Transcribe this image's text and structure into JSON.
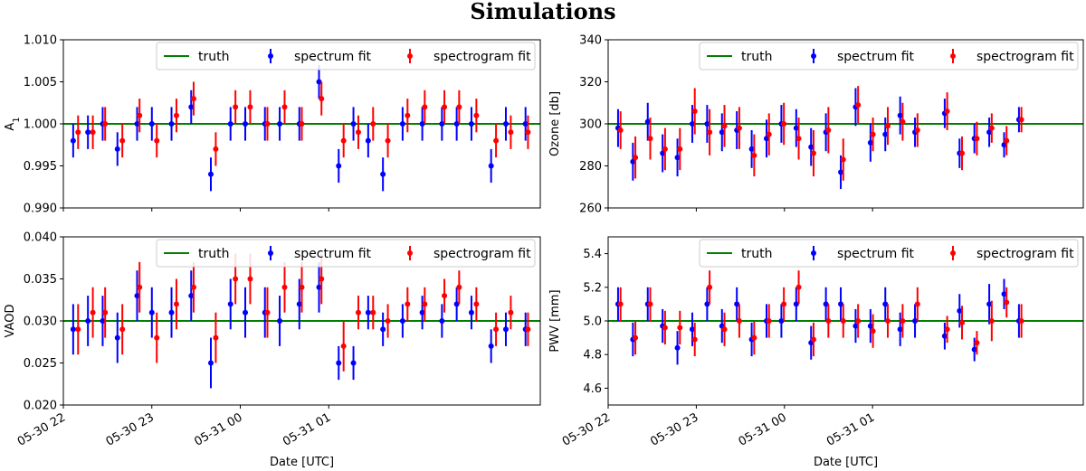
{
  "figure": {
    "title": "Simulations"
  },
  "colors": {
    "truth": "#008000",
    "spectrum": "#0000ff",
    "spectrogram": "#ff0000"
  },
  "legend": {
    "truth": "truth",
    "spectrum": "spectrum fit",
    "spectrogram": "spectrogram fit"
  },
  "chart_data": [
    {
      "id": "A1",
      "type": "scatter",
      "ylabel": "A1",
      "ylabel_base": "A",
      "ylabel_sub": "1",
      "xlabel": "",
      "ylim": [
        0.99,
        1.01
      ],
      "yticks": [
        0.99,
        0.995,
        1.0,
        1.005,
        1.01
      ],
      "ytick_labels": [
        "0.990",
        "0.995",
        "1.000",
        "1.005",
        "1.010"
      ],
      "truth": 1.0,
      "legend_position": "top-right",
      "spectrum": [
        [
          0.2,
          0.998,
          0.002
        ],
        [
          0.5,
          0.999,
          0.002
        ],
        [
          0.8,
          1.0,
          0.002
        ],
        [
          1.1,
          0.997,
          0.002
        ],
        [
          1.5,
          1.0,
          0.002
        ],
        [
          1.8,
          1.0,
          0.002
        ],
        [
          2.2,
          1.0,
          0.002
        ],
        [
          2.6,
          1.002,
          0.002
        ],
        [
          3.0,
          0.994,
          0.002
        ],
        [
          3.4,
          1.0,
          0.002
        ],
        [
          3.7,
          1.0,
          0.002
        ],
        [
          4.1,
          1.0,
          0.002
        ],
        [
          4.4,
          1.0,
          0.002
        ],
        [
          4.8,
          1.0,
          0.002
        ],
        [
          5.2,
          1.005,
          0.002
        ],
        [
          5.6,
          0.995,
          0.002
        ],
        [
          5.9,
          1.0,
          0.002
        ],
        [
          6.2,
          0.998,
          0.002
        ],
        [
          6.5,
          0.994,
          0.002
        ],
        [
          6.9,
          1.0,
          0.002
        ],
        [
          7.3,
          1.0,
          0.002
        ],
        [
          7.7,
          1.0,
          0.002
        ],
        [
          8.0,
          1.0,
          0.002
        ],
        [
          8.3,
          1.0,
          0.002
        ],
        [
          8.7,
          0.995,
          0.002
        ],
        [
          9.0,
          1.0,
          0.002
        ],
        [
          9.4,
          1.0,
          0.002
        ]
      ],
      "spectrogram": [
        [
          0.3,
          0.999,
          0.002
        ],
        [
          0.6,
          0.999,
          0.002
        ],
        [
          0.85,
          1.0,
          0.002
        ],
        [
          1.2,
          0.998,
          0.002
        ],
        [
          1.55,
          1.001,
          0.002
        ],
        [
          1.9,
          0.998,
          0.002
        ],
        [
          2.3,
          1.001,
          0.002
        ],
        [
          2.65,
          1.003,
          0.002
        ],
        [
          3.1,
          0.997,
          0.002
        ],
        [
          3.5,
          1.002,
          0.002
        ],
        [
          3.8,
          1.002,
          0.002
        ],
        [
          4.15,
          1.0,
          0.002
        ],
        [
          4.5,
          1.002,
          0.002
        ],
        [
          4.85,
          1.0,
          0.002
        ],
        [
          5.25,
          1.003,
          0.002
        ],
        [
          5.7,
          0.998,
          0.002
        ],
        [
          6.0,
          0.999,
          0.002
        ],
        [
          6.3,
          1.0,
          0.002
        ],
        [
          6.6,
          0.998,
          0.002
        ],
        [
          7.0,
          1.001,
          0.002
        ],
        [
          7.35,
          1.002,
          0.002
        ],
        [
          7.75,
          1.002,
          0.002
        ],
        [
          8.05,
          1.002,
          0.002
        ],
        [
          8.4,
          1.001,
          0.002
        ],
        [
          8.8,
          0.998,
          0.002
        ],
        [
          9.1,
          0.999,
          0.002
        ],
        [
          9.45,
          0.999,
          0.002
        ]
      ]
    },
    {
      "id": "ozone",
      "type": "scatter",
      "ylabel": "Ozone [db]",
      "xlabel": "",
      "ylim": [
        260,
        340
      ],
      "yticks": [
        260,
        280,
        300,
        320,
        340
      ],
      "ytick_labels": [
        "260",
        "280",
        "300",
        "320",
        "340"
      ],
      "truth": 300,
      "legend_position": "top-right",
      "spectrum": [
        [
          0.2,
          298,
          9
        ],
        [
          0.5,
          282,
          9
        ],
        [
          0.8,
          301,
          9
        ],
        [
          1.1,
          286,
          9
        ],
        [
          1.4,
          284,
          9
        ],
        [
          1.7,
          300,
          9
        ],
        [
          2.0,
          300,
          9
        ],
        [
          2.3,
          296,
          9
        ],
        [
          2.6,
          297,
          9
        ],
        [
          2.9,
          288,
          9
        ],
        [
          3.2,
          293,
          9
        ],
        [
          3.5,
          300,
          9
        ],
        [
          3.8,
          298,
          9
        ],
        [
          4.1,
          289,
          9
        ],
        [
          4.4,
          296,
          9
        ],
        [
          4.7,
          277,
          8
        ],
        [
          5.0,
          308,
          9
        ],
        [
          5.3,
          291,
          9
        ],
        [
          5.6,
          295,
          8
        ],
        [
          5.9,
          304,
          9
        ],
        [
          6.2,
          296,
          7
        ],
        [
          6.8,
          305,
          7
        ],
        [
          7.1,
          286,
          7
        ],
        [
          7.4,
          293,
          7
        ],
        [
          7.7,
          296,
          7
        ],
        [
          8.0,
          290,
          6
        ],
        [
          8.3,
          302,
          6
        ]
      ],
      "spectrogram": [
        [
          0.25,
          297,
          9
        ],
        [
          0.55,
          284,
          10
        ],
        [
          0.85,
          293,
          10
        ],
        [
          1.15,
          288,
          10
        ],
        [
          1.45,
          288,
          10
        ],
        [
          1.75,
          306,
          11
        ],
        [
          2.05,
          296,
          11
        ],
        [
          2.35,
          299,
          10
        ],
        [
          2.65,
          298,
          10
        ],
        [
          2.95,
          285,
          10
        ],
        [
          3.25,
          295,
          10
        ],
        [
          3.55,
          300,
          10
        ],
        [
          3.85,
          293,
          10
        ],
        [
          4.15,
          286,
          11
        ],
        [
          4.45,
          297,
          11
        ],
        [
          4.75,
          283,
          10
        ],
        [
          5.05,
          309,
          9
        ],
        [
          5.35,
          295,
          8
        ],
        [
          5.65,
          299,
          9
        ],
        [
          5.95,
          301,
          9
        ],
        [
          6.25,
          297,
          8
        ],
        [
          6.85,
          306,
          9
        ],
        [
          7.15,
          286,
          8
        ],
        [
          7.45,
          293,
          8
        ],
        [
          7.75,
          298,
          7
        ],
        [
          8.05,
          292,
          7
        ],
        [
          8.35,
          302,
          6
        ]
      ]
    },
    {
      "id": "vaod",
      "type": "scatter",
      "ylabel": "VAOD",
      "xlabel": "Date [UTC]",
      "ylim": [
        0.02,
        0.04
      ],
      "yticks": [
        0.02,
        0.025,
        0.03,
        0.035,
        0.04
      ],
      "ytick_labels": [
        "0.020",
        "0.025",
        "0.030",
        "0.035",
        "0.040"
      ],
      "truth": 0.03,
      "legend_position": "top-right",
      "xtick_labels": [
        "05-30 22",
        "05-30 23",
        "05-31 00",
        "05-31 01"
      ],
      "spectrum": [
        [
          0.2,
          0.029,
          0.003
        ],
        [
          0.5,
          0.03,
          0.003
        ],
        [
          0.8,
          0.03,
          0.003
        ],
        [
          1.1,
          0.028,
          0.003
        ],
        [
          1.5,
          0.033,
          0.003
        ],
        [
          1.8,
          0.031,
          0.003
        ],
        [
          2.2,
          0.031,
          0.003
        ],
        [
          2.6,
          0.033,
          0.003
        ],
        [
          3.0,
          0.025,
          0.003
        ],
        [
          3.4,
          0.032,
          0.003
        ],
        [
          3.7,
          0.031,
          0.003
        ],
        [
          4.1,
          0.031,
          0.003
        ],
        [
          4.4,
          0.03,
          0.003
        ],
        [
          4.8,
          0.032,
          0.003
        ],
        [
          5.2,
          0.034,
          0.003
        ],
        [
          5.6,
          0.025,
          0.002
        ],
        [
          5.9,
          0.025,
          0.002
        ],
        [
          6.2,
          0.031,
          0.002
        ],
        [
          6.5,
          0.029,
          0.002
        ],
        [
          6.9,
          0.03,
          0.002
        ],
        [
          7.3,
          0.031,
          0.002
        ],
        [
          7.7,
          0.03,
          0.002
        ],
        [
          8.0,
          0.032,
          0.002
        ],
        [
          8.3,
          0.031,
          0.002
        ],
        [
          8.7,
          0.027,
          0.002
        ],
        [
          9.0,
          0.029,
          0.002
        ],
        [
          9.4,
          0.029,
          0.002
        ]
      ],
      "spectrogram": [
        [
          0.3,
          0.029,
          0.003
        ],
        [
          0.6,
          0.031,
          0.003
        ],
        [
          0.85,
          0.031,
          0.003
        ],
        [
          1.2,
          0.029,
          0.003
        ],
        [
          1.55,
          0.034,
          0.003
        ],
        [
          1.9,
          0.028,
          0.003
        ],
        [
          2.3,
          0.032,
          0.003
        ],
        [
          2.65,
          0.034,
          0.003
        ],
        [
          3.1,
          0.028,
          0.003
        ],
        [
          3.5,
          0.035,
          0.003
        ],
        [
          3.8,
          0.035,
          0.003
        ],
        [
          4.15,
          0.031,
          0.003
        ],
        [
          4.5,
          0.034,
          0.003
        ],
        [
          4.85,
          0.034,
          0.003
        ],
        [
          5.25,
          0.035,
          0.003
        ],
        [
          5.7,
          0.027,
          0.003
        ],
        [
          6.0,
          0.031,
          0.002
        ],
        [
          6.3,
          0.031,
          0.002
        ],
        [
          6.6,
          0.03,
          0.002
        ],
        [
          7.0,
          0.032,
          0.002
        ],
        [
          7.35,
          0.032,
          0.002
        ],
        [
          7.75,
          0.033,
          0.002
        ],
        [
          8.05,
          0.034,
          0.002
        ],
        [
          8.4,
          0.032,
          0.002
        ],
        [
          8.8,
          0.029,
          0.002
        ],
        [
          9.1,
          0.031,
          0.002
        ],
        [
          9.45,
          0.029,
          0.002
        ]
      ]
    },
    {
      "id": "pwv",
      "type": "scatter",
      "ylabel": "PWV [mm]",
      "xlabel": "Date [UTC]",
      "ylim": [
        4.5,
        5.5
      ],
      "yticks": [
        4.6,
        4.8,
        5.0,
        5.2,
        5.4
      ],
      "ytick_labels": [
        "4.6",
        "4.8",
        "5.0",
        "5.2",
        "5.4"
      ],
      "truth": 5.0,
      "legend_position": "top-right",
      "xtick_labels": [
        "05-30 22",
        "05-30 23",
        "05-31 00",
        "05-31 01"
      ],
      "spectrum": [
        [
          0.2,
          5.1,
          0.1
        ],
        [
          0.5,
          4.89,
          0.1
        ],
        [
          0.8,
          5.1,
          0.1
        ],
        [
          1.1,
          4.97,
          0.1
        ],
        [
          1.4,
          4.84,
          0.1
        ],
        [
          1.7,
          4.95,
          0.1
        ],
        [
          2.0,
          5.1,
          0.1
        ],
        [
          2.3,
          4.97,
          0.1
        ],
        [
          2.6,
          5.1,
          0.1
        ],
        [
          2.9,
          4.89,
          0.1
        ],
        [
          3.2,
          5.0,
          0.1
        ],
        [
          3.5,
          5.0,
          0.1
        ],
        [
          3.8,
          5.1,
          0.1
        ],
        [
          4.1,
          4.87,
          0.1
        ],
        [
          4.4,
          5.1,
          0.1
        ],
        [
          4.7,
          5.1,
          0.1
        ],
        [
          5.0,
          4.97,
          0.1
        ],
        [
          5.3,
          4.97,
          0.1
        ],
        [
          5.6,
          5.1,
          0.1
        ],
        [
          5.9,
          4.95,
          0.1
        ],
        [
          6.2,
          5.0,
          0.1
        ],
        [
          6.8,
          4.91,
          0.08
        ],
        [
          7.1,
          5.06,
          0.1
        ],
        [
          7.4,
          4.83,
          0.07
        ],
        [
          7.7,
          5.1,
          0.12
        ],
        [
          8.0,
          5.16,
          0.09
        ],
        [
          8.3,
          5.0,
          0.1
        ]
      ],
      "spectrogram": [
        [
          0.25,
          5.1,
          0.1
        ],
        [
          0.55,
          4.9,
          0.1
        ],
        [
          0.85,
          5.1,
          0.1
        ],
        [
          1.15,
          4.96,
          0.1
        ],
        [
          1.45,
          4.96,
          0.1
        ],
        [
          1.75,
          4.89,
          0.1
        ],
        [
          2.05,
          5.2,
          0.1
        ],
        [
          2.35,
          4.95,
          0.1
        ],
        [
          2.65,
          5.0,
          0.1
        ],
        [
          2.95,
          4.9,
          0.1
        ],
        [
          3.25,
          5.0,
          0.1
        ],
        [
          3.55,
          5.1,
          0.1
        ],
        [
          3.85,
          5.2,
          0.1
        ],
        [
          4.15,
          4.89,
          0.1
        ],
        [
          4.45,
          5.0,
          0.1
        ],
        [
          4.75,
          5.0,
          0.1
        ],
        [
          5.05,
          5.0,
          0.1
        ],
        [
          5.35,
          4.94,
          0.1
        ],
        [
          5.65,
          5.0,
          0.1
        ],
        [
          5.95,
          5.0,
          0.1
        ],
        [
          6.25,
          5.1,
          0.1
        ],
        [
          6.85,
          4.95,
          0.08
        ],
        [
          7.15,
          4.99,
          0.1
        ],
        [
          7.45,
          4.87,
          0.07
        ],
        [
          7.75,
          5.0,
          0.12
        ],
        [
          8.05,
          5.11,
          0.09
        ],
        [
          8.35,
          5.0,
          0.1
        ]
      ]
    }
  ]
}
